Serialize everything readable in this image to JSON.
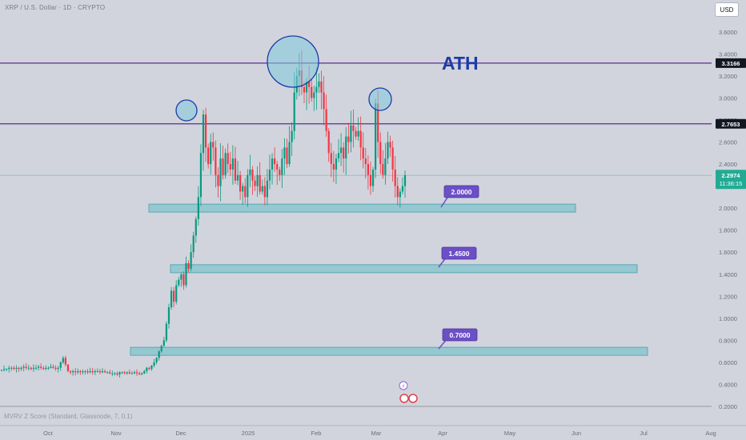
{
  "header": {
    "symbol_line": "XRP / U.S. Dollar · 1D · CRYPTO"
  },
  "currency_button": "USD",
  "indicator_label": "MVRV Z Score (Standard, Glassnode, 7, 0.1)",
  "colors": {
    "up": "#089981",
    "down": "#f23645",
    "level_line": "#5b2d90",
    "zone": "#8fc7cf",
    "zone_border": "#4ea4b0",
    "annotation_blue": "#1c3aa9",
    "label_box": "#6c4fc7",
    "last_price": "#22ab94",
    "bg": "#d1d4dc"
  },
  "chart_data": {
    "type": "candlestick",
    "ylim": [
      0.3,
      3.75
    ],
    "y_ticks": [
      "3.6000",
      "3.4000",
      "3.2000",
      "3.0000",
      "2.8000",
      "2.6000",
      "2.4000",
      "2.2000",
      "2.0000",
      "1.8000",
      "1.6000",
      "1.4000",
      "1.2000",
      "1.0000",
      "0.8000",
      "0.6000",
      "0.4000",
      "0.2000"
    ],
    "x_ticks": [
      "Oct",
      "Nov",
      "Dec",
      "2025",
      "Feb",
      "Mar",
      "Apr",
      "May",
      "Jun",
      "Jul",
      "Aug"
    ],
    "horizontal_levels": [
      {
        "value": 3.3166,
        "label": "3.3166"
      },
      {
        "value": 2.7653,
        "label": "2.7653"
      }
    ],
    "last_price": {
      "value": 2.2974,
      "label": "2.2974",
      "countdown": "11:36:15"
    },
    "zones": [
      {
        "center": 2.0,
        "label": "2.0000"
      },
      {
        "center": 1.45,
        "label": "1.4500"
      },
      {
        "center": 0.7,
        "label": "0.7000"
      }
    ],
    "annotation_text": "ATH",
    "price_path": [
      0.53,
      0.54,
      0.54,
      0.55,
      0.55,
      0.54,
      0.55,
      0.54,
      0.55,
      0.56,
      0.55,
      0.55,
      0.54,
      0.55,
      0.55,
      0.56,
      0.55,
      0.54,
      0.55,
      0.55,
      0.56,
      0.55,
      0.54,
      0.55,
      0.6,
      0.64,
      0.58,
      0.52,
      0.51,
      0.52,
      0.51,
      0.52,
      0.51,
      0.52,
      0.52,
      0.51,
      0.52,
      0.51,
      0.52,
      0.52,
      0.51,
      0.52,
      0.51,
      0.51,
      0.5,
      0.5,
      0.5,
      0.49,
      0.51,
      0.51,
      0.5,
      0.51,
      0.5,
      0.5,
      0.51,
      0.5,
      0.49,
      0.5,
      0.52,
      0.55,
      0.54,
      0.57,
      0.6,
      0.64,
      0.7,
      0.75,
      0.8,
      0.95,
      1.1,
      1.25,
      1.15,
      1.3,
      1.35,
      1.4,
      1.3,
      1.5,
      1.45,
      1.6,
      1.75,
      1.9,
      2.1,
      2.5,
      2.85,
      2.55,
      2.4,
      2.6,
      2.55,
      2.3,
      2.2,
      2.45,
      2.3,
      2.5,
      2.4,
      2.35,
      2.45,
      2.25,
      2.3,
      2.15,
      2.2,
      2.1,
      2.3,
      2.35,
      2.25,
      2.2,
      2.3,
      2.15,
      2.2,
      2.1,
      2.25,
      2.35,
      2.45,
      2.4,
      2.35,
      2.3,
      2.45,
      2.55,
      2.4,
      2.6,
      2.7,
      3.05,
      3.2,
      3.25,
      3.1,
      3.05,
      3.15,
      3.1,
      3.0,
      3.05,
      3.1,
      3.15,
      3.05,
      2.9,
      2.7,
      2.5,
      2.4,
      2.35,
      2.45,
      2.5,
      2.55,
      2.45,
      2.65,
      2.6,
      2.75,
      2.7,
      2.65,
      2.7,
      2.55,
      2.45,
      2.4,
      2.3,
      2.2,
      2.35,
      2.95,
      2.6,
      2.4,
      2.3,
      2.45,
      2.6,
      2.55,
      2.35,
      2.2,
      2.1,
      2.15,
      2.2,
      2.3
    ],
    "xlabel": "",
    "ylabel": ""
  }
}
